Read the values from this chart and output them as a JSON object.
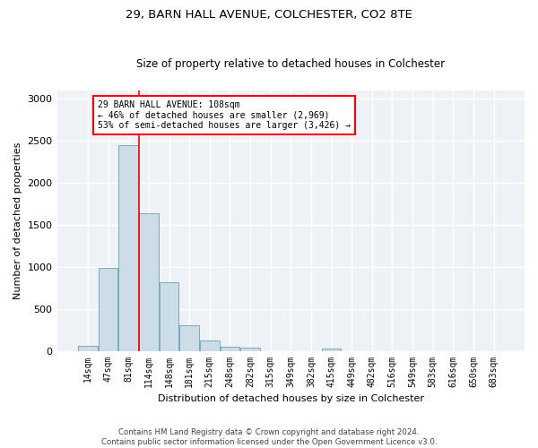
{
  "title": "29, BARN HALL AVENUE, COLCHESTER, CO2 8TE",
  "subtitle": "Size of property relative to detached houses in Colchester",
  "xlabel": "Distribution of detached houses by size in Colchester",
  "ylabel": "Number of detached properties",
  "bar_labels": [
    "14sqm",
    "47sqm",
    "81sqm",
    "114sqm",
    "148sqm",
    "181sqm",
    "215sqm",
    "248sqm",
    "282sqm",
    "315sqm",
    "349sqm",
    "382sqm",
    "415sqm",
    "449sqm",
    "482sqm",
    "516sqm",
    "549sqm",
    "583sqm",
    "616sqm",
    "650sqm",
    "683sqm"
  ],
  "bar_values": [
    60,
    990,
    2450,
    1640,
    820,
    300,
    120,
    50,
    40,
    0,
    0,
    0,
    30,
    0,
    0,
    0,
    0,
    0,
    0,
    0,
    0
  ],
  "bar_color": "#ccdde8",
  "bar_edge_color": "#7aaabb",
  "red_line_bin_index": 2,
  "annotation_line1": "29 BARN HALL AVENUE: 108sqm",
  "annotation_line2": "← 46% of detached houses are smaller (2,969)",
  "annotation_line3": "53% of semi-detached houses are larger (3,426) →",
  "annotation_box_color": "white",
  "annotation_box_edge_color": "red",
  "ylim": [
    0,
    3100
  ],
  "yticks": [
    0,
    500,
    1000,
    1500,
    2000,
    2500,
    3000
  ],
  "background_color": "#eef2f7",
  "footer_line1": "Contains HM Land Registry data © Crown copyright and database right 2024.",
  "footer_line2": "Contains public sector information licensed under the Open Government Licence v3.0."
}
